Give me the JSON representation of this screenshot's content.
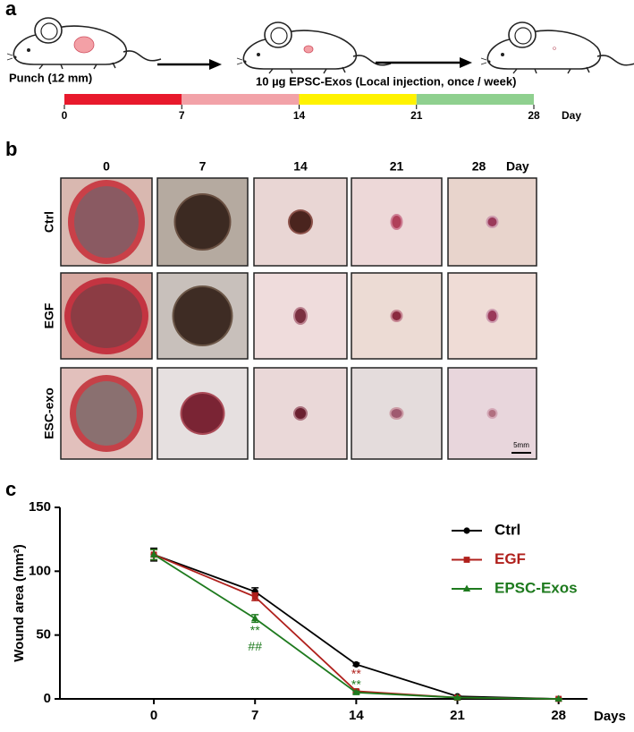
{
  "panel_a": {
    "label": "a",
    "punch_text": "Punch (12 mm)",
    "treatment_text": "10 µg EPSC-Exos (Local injection, once / week)",
    "timeline": {
      "ticks": [
        0,
        7,
        14,
        21,
        28
      ],
      "unit": "Day",
      "colors": [
        "#e8192c",
        "#f2a2a8",
        "#fff200",
        "#8fd08f"
      ]
    }
  },
  "panel_b": {
    "label": "b",
    "columns": [
      "0",
      "7",
      "14",
      "21",
      "28"
    ],
    "unit": "Day",
    "rows": [
      "Ctrl",
      "EGF",
      "ESC-exo"
    ],
    "scale_bar": "5mm"
  },
  "chart_data": {
    "type": "line",
    "label": "c",
    "ylabel": "Wound area (mm²)",
    "xlabel": "Days",
    "x": [
      0,
      7,
      14,
      21,
      28
    ],
    "xlim": [
      -6.5,
      30
    ],
    "xticks": [
      0,
      7,
      14,
      21,
      28
    ],
    "ylim": [
      0,
      150
    ],
    "yticks": [
      0,
      50,
      100,
      150
    ],
    "series": [
      {
        "name": "Ctrl",
        "color": "#000000",
        "marker": "circle",
        "values": [
          113,
          84,
          27,
          2,
          0
        ],
        "errors": [
          5,
          3,
          1,
          0.5,
          0.3
        ]
      },
      {
        "name": "EGF",
        "color": "#b0201c",
        "marker": "square",
        "values": [
          113,
          80,
          6,
          1,
          0
        ],
        "errors": [
          4,
          3,
          1,
          0.5,
          0.3
        ]
      },
      {
        "name": "EPSC-Exos",
        "color": "#1e7a1e",
        "marker": "triangle",
        "values": [
          113,
          63,
          5,
          1,
          0
        ],
        "errors": [
          4,
          3,
          1,
          0.5,
          0.3
        ]
      }
    ],
    "annotations": [
      {
        "text": "**",
        "x": 14,
        "color": "#b0201c"
      },
      {
        "text": "**",
        "x": 14,
        "color": "#1e7a1e"
      },
      {
        "text": "**",
        "x": 7,
        "color": "#1e7a1e"
      },
      {
        "text": "##",
        "x": 7,
        "color": "#1e7a1e"
      }
    ],
    "legend": "upper right"
  }
}
